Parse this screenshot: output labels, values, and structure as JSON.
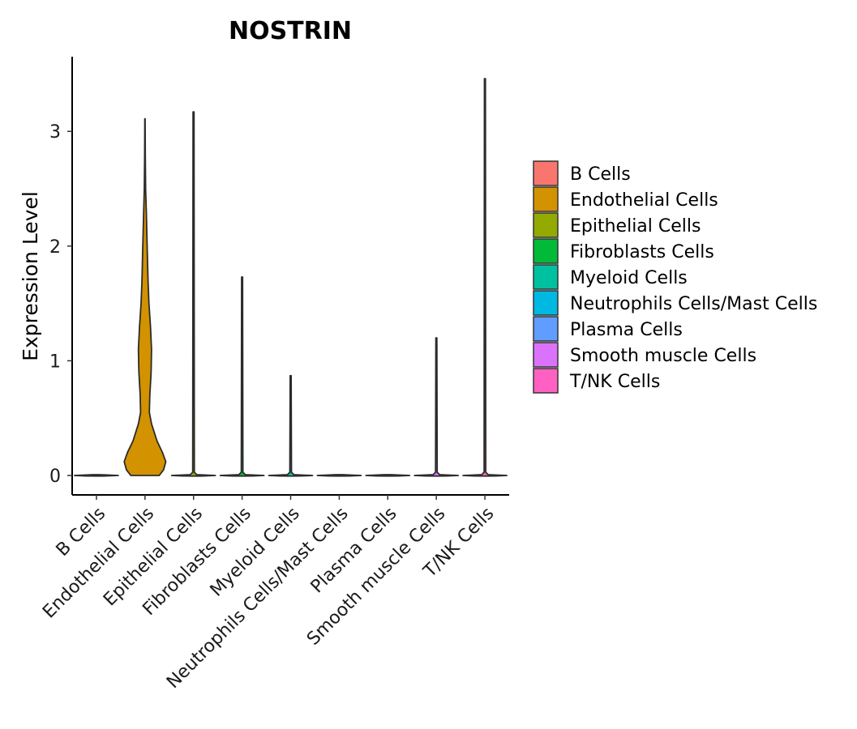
{
  "chart_data": {
    "type": "violin",
    "title": "NOSTRIN",
    "xlabel": "",
    "ylabel": "Expression Level",
    "ylim": [
      -0.17,
      3.6
    ],
    "yticks": [
      0,
      1,
      2,
      3
    ],
    "categories": [
      "B Cells",
      "Endothelial Cells",
      "Epithelial Cells",
      "Fibroblasts Cells",
      "Myeloid Cells",
      "Neutrophils Cells/Mast Cells",
      "Plasma Cells",
      "Smooth muscle Cells",
      "T/NK Cells"
    ],
    "colors": [
      "#F8766D",
      "#D39200",
      "#93AA00",
      "#00BA38",
      "#00C19F",
      "#00B9E3",
      "#619CFF",
      "#DB72FB",
      "#FF61C3"
    ],
    "max_values": [
      0,
      3.11,
      3.17,
      1.73,
      0.87,
      0,
      0,
      1.2,
      3.46
    ],
    "density_profiles": [
      [
        [
          0,
          1
        ]
      ],
      [
        [
          0,
          0.65
        ],
        [
          0.05,
          0.85
        ],
        [
          0.12,
          0.95
        ],
        [
          0.2,
          0.8
        ],
        [
          0.3,
          0.55
        ],
        [
          0.45,
          0.3
        ],
        [
          0.55,
          0.2
        ],
        [
          0.7,
          0.22
        ],
        [
          0.9,
          0.28
        ],
        [
          1.1,
          0.3
        ],
        [
          1.3,
          0.25
        ],
        [
          1.5,
          0.18
        ],
        [
          1.7,
          0.14
        ],
        [
          2.0,
          0.1
        ],
        [
          2.3,
          0.06
        ],
        [
          2.5,
          0.03
        ],
        [
          2.8,
          0.015
        ],
        [
          3.11,
          0.008
        ]
      ],
      [
        [
          0,
          1
        ]
      ],
      [
        [
          0,
          1
        ]
      ],
      [
        [
          0,
          1
        ]
      ],
      [
        [
          0,
          1
        ]
      ],
      [
        [
          0,
          1
        ]
      ],
      [
        [
          0,
          1
        ]
      ],
      [
        [
          0,
          1
        ]
      ]
    ],
    "legend": {
      "position": "right",
      "entries": [
        "B Cells",
        "Endothelial Cells",
        "Epithelial Cells",
        "Fibroblasts Cells",
        "Myeloid Cells",
        "Neutrophils Cells/Mast Cells",
        "Plasma Cells",
        "Smooth muscle Cells",
        "T/NK Cells"
      ]
    }
  }
}
